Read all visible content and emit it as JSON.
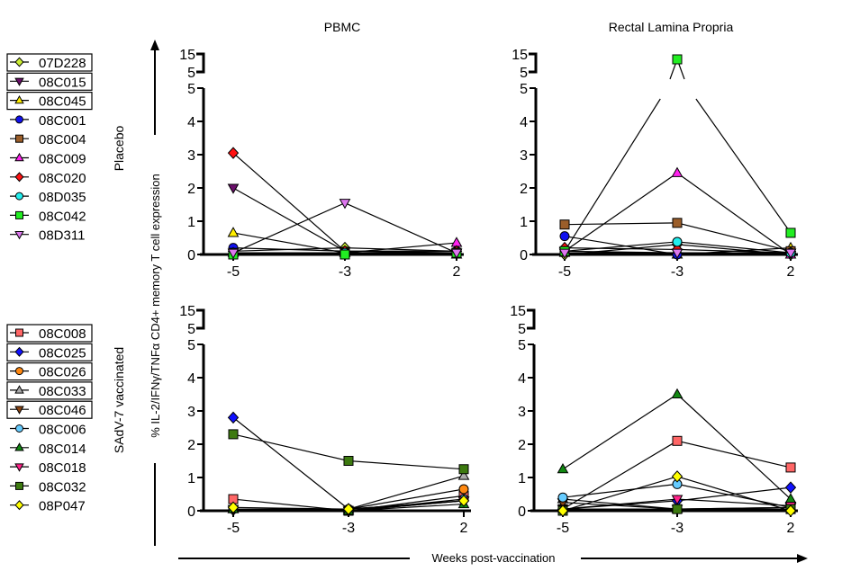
{
  "chart_data": {
    "type": "line",
    "column_titles": [
      "PBMC",
      "Rectal Lamina Propria"
    ],
    "row_titles": [
      "Placebo",
      "SAdV-7 vaccinated"
    ],
    "ylabel": "% IL-2/IFNγ/TNFα CD4+ memory T cell expression",
    "xlabel": "Weeks post-vaccination",
    "x": [
      -5,
      -3,
      2
    ],
    "x_tick_labels": [
      "-5",
      "-3",
      "2"
    ],
    "y_tick_labels_lower": [
      "0",
      "1",
      "2",
      "3",
      "4",
      "5"
    ],
    "y_tick_labels_upper": [
      "5",
      "15"
    ],
    "ylim_lower": [
      0,
      5
    ],
    "ylim_upper": [
      5,
      15
    ],
    "groups": [
      {
        "name": "Placebo",
        "series": [
          {
            "name": "07D228",
            "marker": "diamond",
            "color": "#ccee33",
            "boxed": true,
            "pbmc": [
              0.1,
              0.2,
              0.1
            ],
            "rlp": [
              0.0,
              0.3,
              0.0
            ]
          },
          {
            "name": "08C015",
            "marker": "triangle-down",
            "color": "#6b0f6b",
            "boxed": true,
            "pbmc": [
              2.0,
              0.1,
              0.05
            ],
            "rlp": [
              0.1,
              0.05,
              0.05
            ]
          },
          {
            "name": "08C045",
            "marker": "triangle-up",
            "color": "#ffee00",
            "boxed": true,
            "pbmc": [
              0.65,
              0.05,
              0.0
            ],
            "rlp": [
              0.05,
              0.0,
              0.2
            ]
          },
          {
            "name": "08C001",
            "marker": "circle",
            "color": "#1010ee",
            "boxed": false,
            "pbmc": [
              0.2,
              0.1,
              0.1
            ],
            "rlp": [
              0.55,
              0.0,
              0.05
            ]
          },
          {
            "name": "08C004",
            "marker": "square",
            "color": "#9b5e2a",
            "boxed": false,
            "pbmc": [
              0.05,
              0.05,
              0.05
            ],
            "rlp": [
              0.9,
              0.95,
              0.1
            ]
          },
          {
            "name": "08C009",
            "marker": "triangle-up",
            "color": "#ff22ee",
            "boxed": false,
            "pbmc": [
              0.05,
              0.05,
              0.35
            ],
            "rlp": [
              0.1,
              2.45,
              0.0
            ]
          },
          {
            "name": "08C020",
            "marker": "diamond",
            "color": "#ff1111",
            "boxed": false,
            "pbmc": [
              3.05,
              0.1,
              0.1
            ],
            "rlp": [
              0.2,
              0.15,
              0.05
            ]
          },
          {
            "name": "08D035",
            "marker": "circle",
            "color": "#22eeee",
            "boxed": false,
            "pbmc": [
              0.05,
              0.05,
              0.05
            ],
            "rlp": [
              0.1,
              0.38,
              0.05
            ]
          },
          {
            "name": "08C042",
            "marker": "square",
            "color": "#22ee22",
            "boxed": false,
            "pbmc": [
              0.0,
              0.0,
              0.05
            ],
            "rlp": [
              0.1,
              12,
              0.65
            ]
          },
          {
            "name": "08D311",
            "marker": "triangle-down",
            "color": "#dd77ee",
            "boxed": false,
            "pbmc": [
              0.05,
              1.55,
              0.05
            ],
            "rlp": [
              0.05,
              0.05,
              0.05
            ]
          }
        ]
      },
      {
        "name": "SAdV-7 vaccinated",
        "series": [
          {
            "name": "08C008",
            "marker": "square",
            "color": "#ff6666",
            "boxed": true,
            "pbmc": [
              0.35,
              0.0,
              0.45
            ],
            "rlp": [
              0.05,
              2.1,
              1.3
            ]
          },
          {
            "name": "08C025",
            "marker": "diamond",
            "color": "#1111ff",
            "boxed": true,
            "pbmc": [
              2.8,
              0.05,
              0.3
            ],
            "rlp": [
              0.05,
              0.3,
              0.7
            ]
          },
          {
            "name": "08C026",
            "marker": "circle",
            "color": "#ff8811",
            "boxed": true,
            "pbmc": [
              0.05,
              0.05,
              0.65
            ],
            "rlp": [
              0.05,
              0.05,
              0.05
            ]
          },
          {
            "name": "08C033",
            "marker": "triangle-up",
            "color": "#aaaaaa",
            "boxed": true,
            "pbmc": [
              0.05,
              0.05,
              1.05
            ],
            "rlp": [
              0.35,
              0.05,
              0.1
            ]
          },
          {
            "name": "08C046",
            "marker": "triangle-down",
            "color": "#8b4513",
            "boxed": true,
            "pbmc": [
              0.0,
              0.0,
              0.3
            ],
            "rlp": [
              0.25,
              0.05,
              0.1
            ]
          },
          {
            "name": "08C006",
            "marker": "circle",
            "color": "#66ccff",
            "boxed": false,
            "pbmc": [
              0.05,
              0.0,
              0.35
            ],
            "rlp": [
              0.4,
              0.8,
              0.1
            ]
          },
          {
            "name": "08C014",
            "marker": "triangle-up",
            "color": "#118811",
            "boxed": false,
            "pbmc": [
              0.05,
              0.0,
              0.2
            ],
            "rlp": [
              1.25,
              3.5,
              0.35
            ]
          },
          {
            "name": "08C018",
            "marker": "triangle-down",
            "color": "#ff2288",
            "boxed": false,
            "pbmc": [
              0.05,
              0.0,
              0.3
            ],
            "rlp": [
              0.05,
              0.35,
              0.15
            ]
          },
          {
            "name": "08C032",
            "marker": "square",
            "color": "#3d7a10",
            "boxed": false,
            "pbmc": [
              2.3,
              1.5,
              1.25
            ],
            "rlp": [
              0.0,
              0.05,
              0.05
            ]
          },
          {
            "name": "08P047",
            "marker": "diamond",
            "color": "#ffff00",
            "boxed": false,
            "pbmc": [
              0.1,
              0.05,
              0.3
            ],
            "rlp": [
              0.0,
              1.03,
              0.0
            ]
          }
        ]
      }
    ]
  }
}
